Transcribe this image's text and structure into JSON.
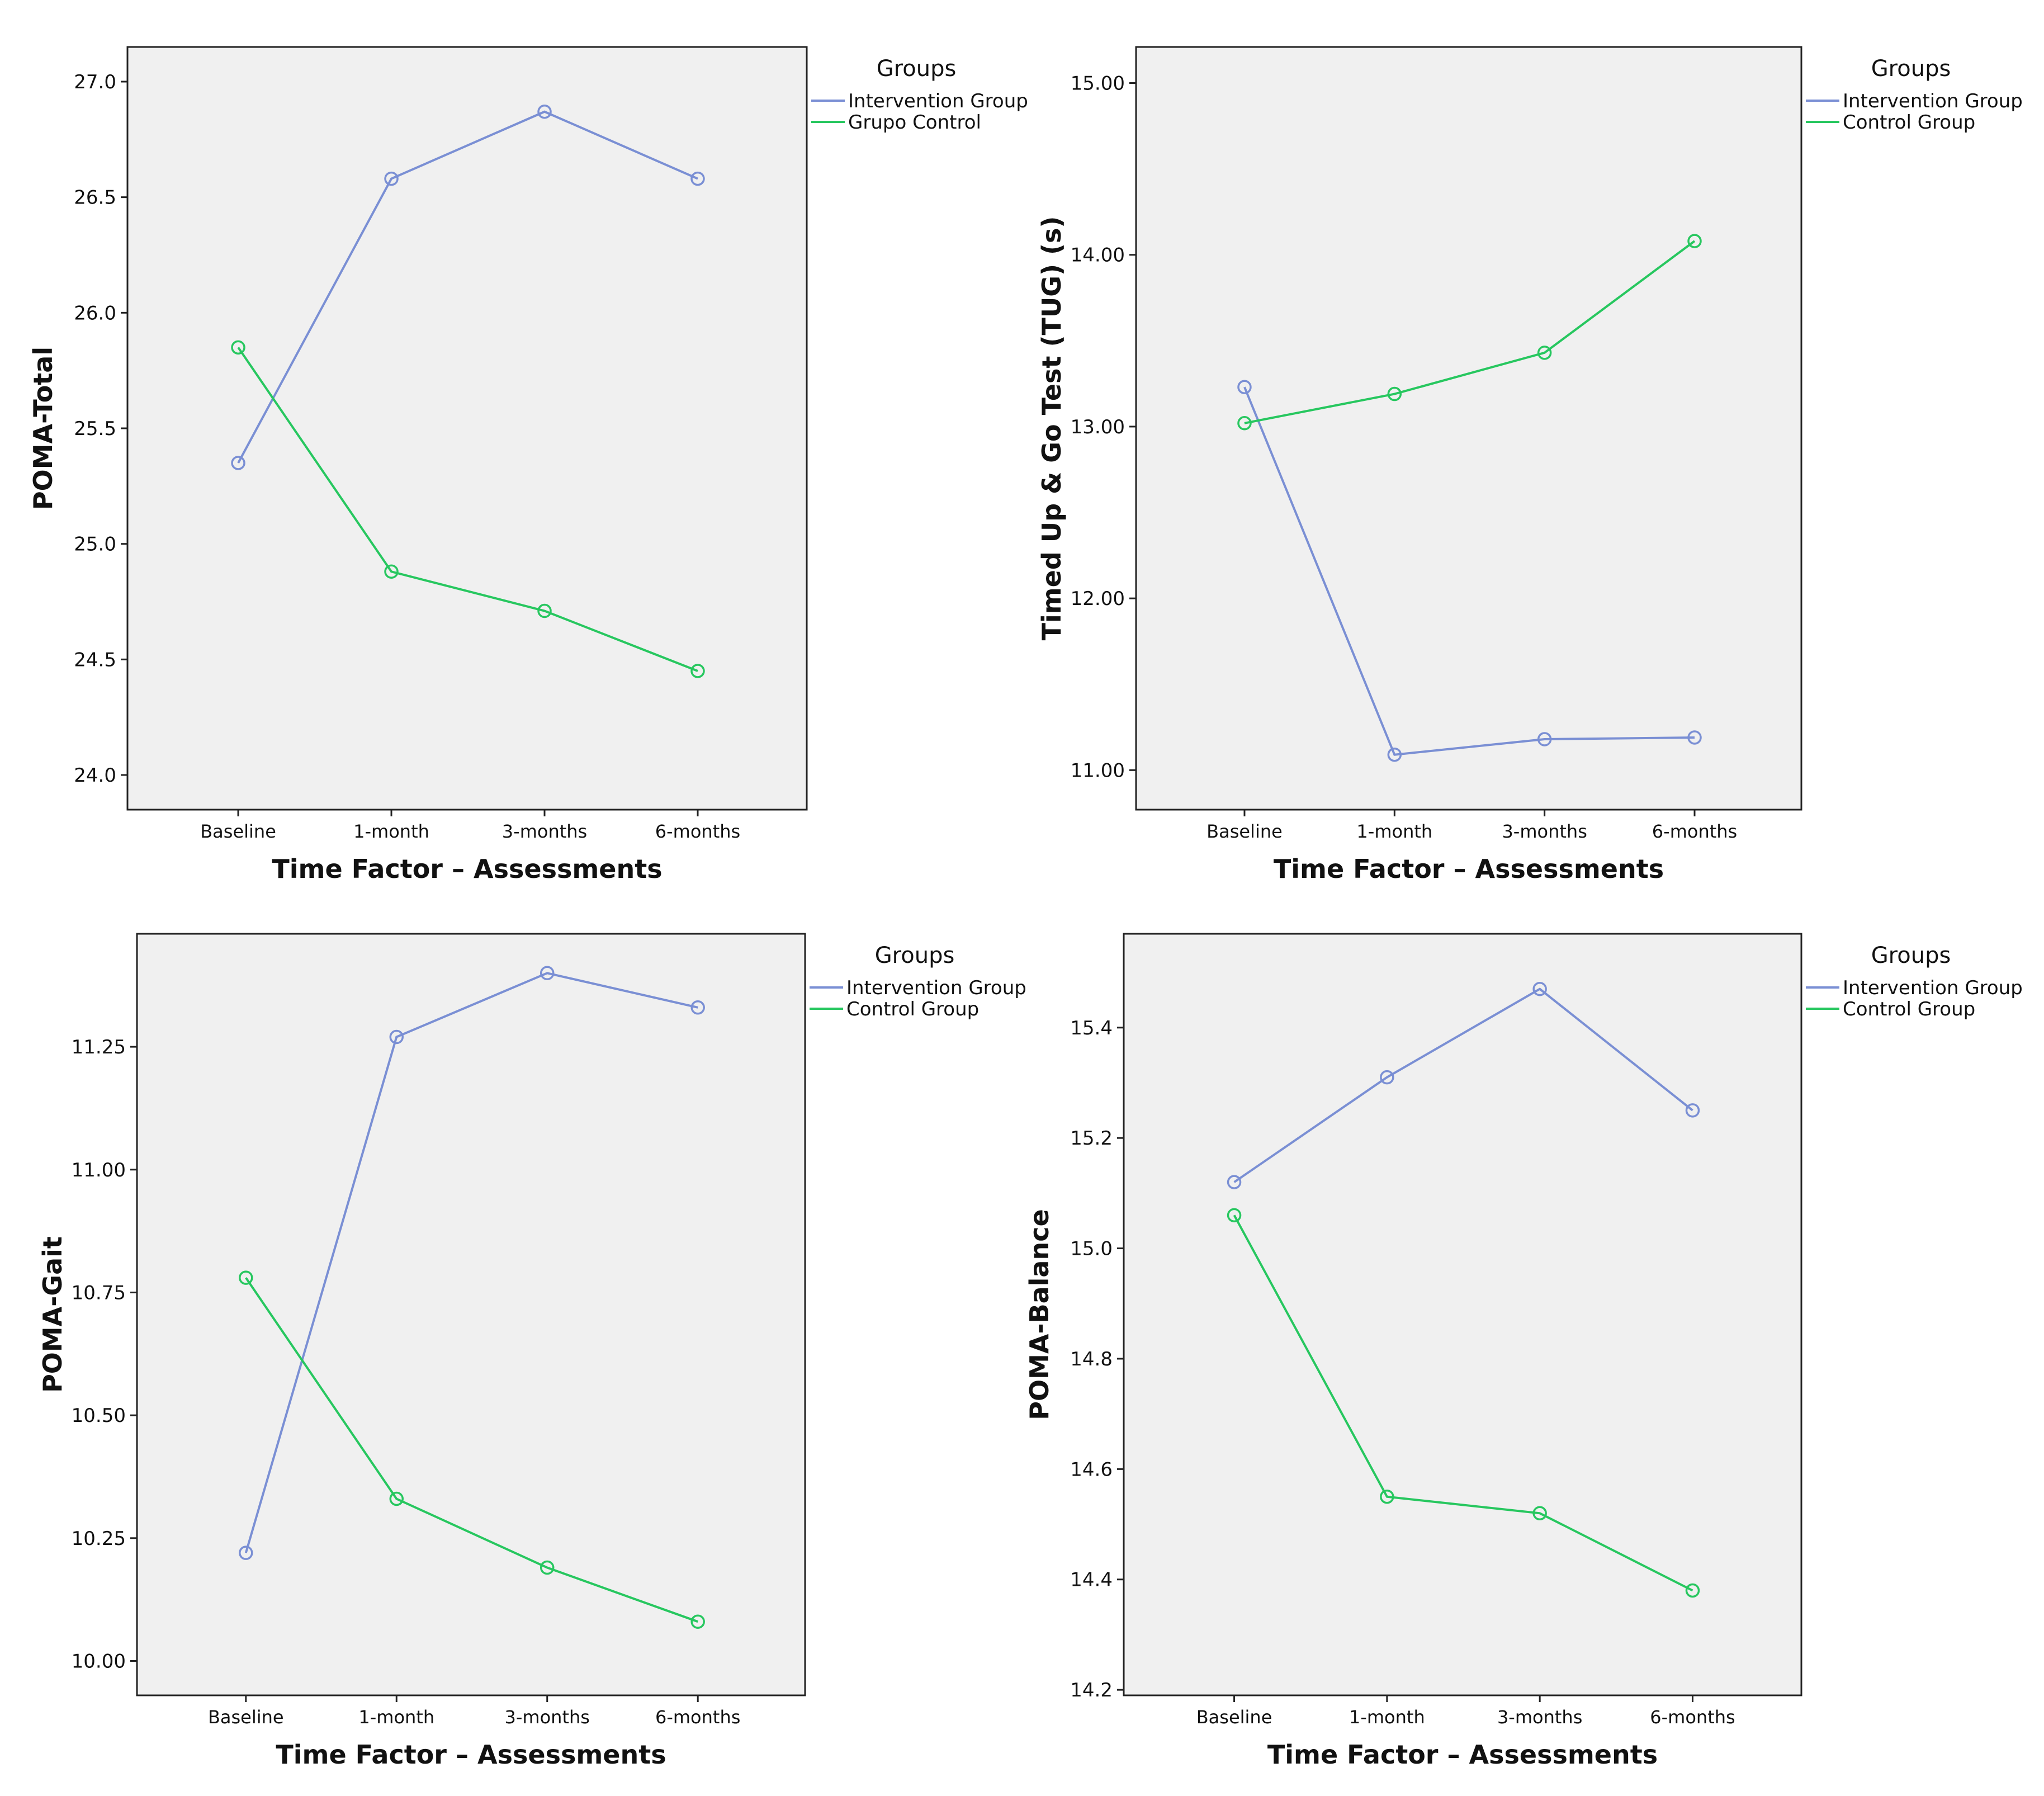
{
  "colors": {
    "intervention": "#7a8fd4",
    "control": "#27c75f",
    "plot_bg": "#f0f0f0",
    "axis": "#222222"
  },
  "chart_data": [
    {
      "type": "line",
      "position": "top-left",
      "title": "",
      "xlabel": "Time Factor – Assessments",
      "ylabel": "POMA-Total",
      "categories": [
        "Baseline",
        "1-month",
        "3-months",
        "6-months"
      ],
      "ylim": [
        23.85,
        27.15
      ],
      "yticks": [
        "24.0",
        "24.5",
        "25.0",
        "25.5",
        "26.0",
        "26.5",
        "27.0"
      ],
      "legend": {
        "title": "Groups",
        "placement": "top-right outside"
      },
      "series": [
        {
          "name": "Intervention Group",
          "color": "#7a8fd4",
          "values": [
            25.35,
            26.58,
            26.87,
            26.58
          ]
        },
        {
          "name": "Grupo Control",
          "color": "#27c75f",
          "values": [
            25.85,
            24.88,
            24.71,
            24.45
          ]
        }
      ]
    },
    {
      "type": "line",
      "position": "top-right",
      "title": "",
      "xlabel": "Time Factor – Assessments",
      "ylabel": "Timed Up & Go Test (TUG) (s)",
      "categories": [
        "Baseline",
        "1-month",
        "3-months",
        "6-months"
      ],
      "ylim": [
        10.77,
        15.21
      ],
      "yticks": [
        "11.00",
        "12.00",
        "13.00",
        "14.00",
        "15.00"
      ],
      "legend": {
        "title": "Groups",
        "placement": "top-right outside"
      },
      "series": [
        {
          "name": "Intervention Group",
          "color": "#7a8fd4",
          "values": [
            13.23,
            11.09,
            11.18,
            11.19
          ]
        },
        {
          "name": "Control Group",
          "color": "#27c75f",
          "values": [
            13.02,
            13.19,
            13.43,
            14.08
          ]
        }
      ]
    },
    {
      "type": "line",
      "position": "bottom-left",
      "title": "",
      "xlabel": "Time Factor – Assessments",
      "ylabel": "POMA-Gait",
      "categories": [
        "Baseline",
        "1-month",
        "3-months",
        "6-months"
      ],
      "ylim": [
        9.93,
        11.48
      ],
      "yticks": [
        "10.00",
        "10.25",
        "10.50",
        "10.75",
        "11.00",
        "11.25"
      ],
      "legend": {
        "title": "Groups",
        "placement": "top-right outside"
      },
      "series": [
        {
          "name": "Intervention Group",
          "color": "#7a8fd4",
          "values": [
            10.22,
            11.27,
            11.4,
            11.33
          ]
        },
        {
          "name": "Control Group",
          "color": "#27c75f",
          "values": [
            10.78,
            10.33,
            10.19,
            10.08
          ]
        }
      ]
    },
    {
      "type": "line",
      "position": "bottom-right",
      "title": "",
      "xlabel": "Time Factor – Assessments",
      "ylabel": "POMA-Balance",
      "categories": [
        "Baseline",
        "1-month",
        "3-months",
        "6-months"
      ],
      "ylim": [
        14.19,
        15.57
      ],
      "yticks": [
        "14.2",
        "14.4",
        "14.6",
        "14.8",
        "15.0",
        "15.2",
        "15.4"
      ],
      "legend": {
        "title": "Groups",
        "placement": "top-right outside"
      },
      "series": [
        {
          "name": "Intervention Group",
          "color": "#7a8fd4",
          "values": [
            15.12,
            15.31,
            15.47,
            15.25
          ]
        },
        {
          "name": "Control Group",
          "color": "#27c75f",
          "values": [
            15.06,
            14.55,
            14.52,
            14.38
          ]
        }
      ]
    }
  ]
}
